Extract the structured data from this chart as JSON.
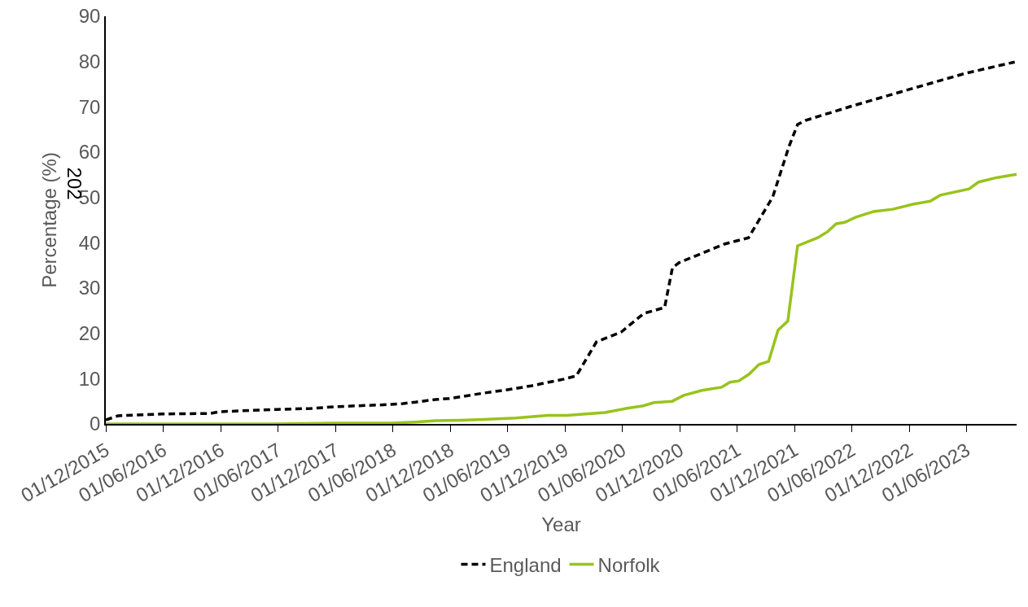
{
  "chart_data": {
    "type": "line",
    "xlabel": "Year",
    "ylabel": "Percentage (%)",
    "annotations": [
      "202"
    ],
    "ylim": [
      0,
      90
    ],
    "yticks": [
      0,
      10,
      20,
      30,
      40,
      50,
      60,
      70,
      80,
      90
    ],
    "xlim": [
      "2015-12-01",
      "2023-11-07"
    ],
    "xticks": [
      {
        "value": "2015-12-01",
        "label": "01/12/2015"
      },
      {
        "value": "2016-06-01",
        "label": "01/06/2016"
      },
      {
        "value": "2016-12-01",
        "label": "01/12/2016"
      },
      {
        "value": "2017-06-01",
        "label": "01/06/2017"
      },
      {
        "value": "2017-12-01",
        "label": "01/12/2017"
      },
      {
        "value": "2018-06-01",
        "label": "01/06/2018"
      },
      {
        "value": "2018-12-01",
        "label": "01/12/2018"
      },
      {
        "value": "2019-06-01",
        "label": "01/06/2019"
      },
      {
        "value": "2019-12-01",
        "label": "01/12/2019"
      },
      {
        "value": "2020-06-01",
        "label": "01/06/2020"
      },
      {
        "value": "2020-12-01",
        "label": "01/12/2020"
      },
      {
        "value": "2021-06-01",
        "label": "01/06/2021"
      },
      {
        "value": "2021-12-01",
        "label": "01/12/2021"
      },
      {
        "value": "2022-06-01",
        "label": "01/06/2022"
      },
      {
        "value": "2022-12-01",
        "label": "01/12/2022"
      },
      {
        "value": "2023-06-01",
        "label": "01/06/2023"
      }
    ],
    "grid": false,
    "legend": "bottom",
    "marker": "none",
    "series": [
      {
        "name": "England",
        "color": "#000000",
        "line_style": "dashed",
        "x": [
          "2015-12-01",
          "2016-01-09",
          "2016-05-28",
          "2016-10-28",
          "2016-11-28",
          "2017-05-28",
          "2017-09-13",
          "2017-11-28",
          "2018-05-28",
          "2018-07-04",
          "2018-08-12",
          "2018-10-15",
          "2018-11-28",
          "2019-03-16",
          "2019-05-28",
          "2019-08-15",
          "2019-11-28",
          "2020-01-06",
          "2020-03-10",
          "2020-05-28",
          "2020-08-08",
          "2020-10-13",
          "2020-11-07",
          "2020-11-28",
          "2021-04-21",
          "2021-07-07",
          "2021-09-22",
          "2021-11-13",
          "2021-12-10",
          "2022-01-04",
          "2022-05-28",
          "2022-11-28",
          "2023-05-28",
          "2023-11-01"
        ],
        "values": [
          0.9,
          1.8,
          2.2,
          2.3,
          2.7,
          3.2,
          3.4,
          3.8,
          4.3,
          4.5,
          4.8,
          5.4,
          5.6,
          6.8,
          7.5,
          8.4,
          9.9,
          10.6,
          18.1,
          20.3,
          24.4,
          25.7,
          34.5,
          35.6,
          39.7,
          41.1,
          50.1,
          61.3,
          66.1,
          67.0,
          70.1,
          73.8,
          77.4,
          79.9
        ]
      },
      {
        "name": "Norfolk",
        "color": "#99c31c",
        "line_style": "solid",
        "x": [
          "2015-12-01",
          "2017-05-19",
          "2017-11-28",
          "2018-05-28",
          "2018-08-12",
          "2018-10-15",
          "2018-12-31",
          "2019-03-16",
          "2019-06-27",
          "2019-10-07",
          "2019-12-07",
          "2020-04-06",
          "2020-06-12",
          "2020-08-06",
          "2020-09-09",
          "2020-11-06",
          "2020-12-13",
          "2021-02-09",
          "2021-04-12",
          "2021-05-09",
          "2021-06-06",
          "2021-07-09",
          "2021-08-09",
          "2021-09-09",
          "2021-10-09",
          "2021-11-09",
          "2021-12-10",
          "2022-02-12",
          "2022-03-15",
          "2022-04-12",
          "2022-05-09",
          "2022-06-12",
          "2022-08-09",
          "2022-10-09",
          "2022-12-12",
          "2023-02-06",
          "2023-03-09",
          "2023-06-09",
          "2023-07-09",
          "2023-09-06",
          "2023-11-07"
        ],
        "values": [
          0,
          0,
          0.2,
          0.2,
          0.4,
          0.7,
          0.8,
          1.0,
          1.3,
          1.9,
          1.9,
          2.5,
          3.4,
          4.0,
          4.7,
          5.0,
          6.3,
          7.4,
          8.1,
          9.2,
          9.5,
          11.0,
          13.1,
          13.8,
          20.7,
          22.7,
          39.3,
          41.1,
          42.4,
          44.2,
          44.5,
          45.6,
          46.9,
          47.4,
          48.5,
          49.2,
          50.5,
          51.9,
          53.4,
          54.4,
          55.1
        ]
      }
    ]
  }
}
